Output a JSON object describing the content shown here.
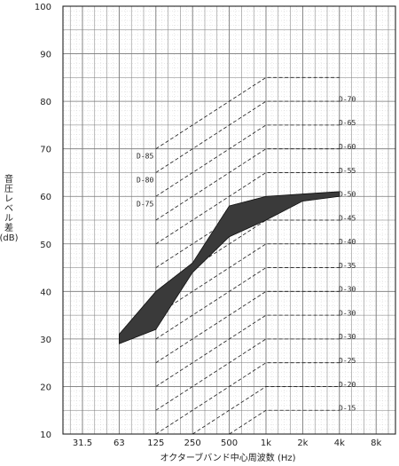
{
  "chart_data": {
    "type": "area",
    "title": "",
    "xlabel": "オクターブバンド中心周波数 (Hz)",
    "ylabel_lines": [
      "音",
      "圧",
      "レ",
      "ベ",
      "ル",
      "差",
      "(dB)"
    ],
    "x_ticks": [
      "31.5",
      "63",
      "125",
      "250",
      "500",
      "1k",
      "2k",
      "4k",
      "8k"
    ],
    "y_ticks": [
      10,
      20,
      30,
      40,
      50,
      60,
      70,
      80,
      90,
      100
    ],
    "ylim": [
      10,
      100
    ],
    "grid": true,
    "band": {
      "x": [
        "63",
        "125",
        "250",
        "500",
        "1k",
        "2k",
        "4k"
      ],
      "upper": [
        31,
        40,
        46,
        58,
        60,
        60.5,
        61
      ],
      "lower": [
        29,
        32,
        44,
        51.5,
        55,
        59,
        60
      ]
    },
    "reference_curves": [
      {
        "name": "D-85",
        "values": [
          null,
          70,
          75,
          80,
          85,
          85,
          85
        ]
      },
      {
        "name": "D-80",
        "values": [
          null,
          65,
          70,
          75,
          80,
          80,
          80
        ]
      },
      {
        "name": "D-75",
        "values": [
          null,
          60,
          65,
          70,
          75,
          75,
          75
        ]
      },
      {
        "name": "D-70",
        "values": [
          null,
          55,
          60,
          65,
          70,
          70,
          70
        ]
      },
      {
        "name": "D-65",
        "values": [
          null,
          50,
          55,
          60,
          65,
          65,
          65
        ]
      },
      {
        "name": "D-60",
        "values": [
          null,
          45,
          50,
          55,
          60,
          60,
          60
        ]
      },
      {
        "name": "D-55",
        "values": [
          null,
          40,
          45,
          50,
          55,
          55,
          55
        ]
      },
      {
        "name": "D-50",
        "values": [
          null,
          35,
          40,
          45,
          50,
          50,
          50
        ]
      },
      {
        "name": "D-45",
        "values": [
          null,
          30,
          35,
          40,
          45,
          45,
          45
        ]
      },
      {
        "name": "D-40",
        "values": [
          null,
          25,
          30,
          35,
          40,
          40,
          40
        ]
      },
      {
        "name": "D-35",
        "values": [
          null,
          20,
          25,
          30,
          35,
          35,
          35
        ]
      },
      {
        "name": "D-30",
        "values": [
          null,
          15,
          20,
          25,
          30,
          30,
          30
        ]
      },
      {
        "name": "D-25",
        "values": [
          null,
          10,
          15,
          20,
          25,
          25,
          25
        ]
      },
      {
        "name": "D-20",
        "values": [
          null,
          5,
          10,
          15,
          20,
          20,
          20
        ]
      },
      {
        "name": "D-15",
        "values": [
          null,
          0,
          5,
          10,
          15,
          15,
          15
        ]
      }
    ],
    "curve_labels": [
      {
        "text": "D-85",
        "y": 68.5,
        "side": "left"
      },
      {
        "text": "D-80",
        "y": 63.5,
        "side": "left"
      },
      {
        "text": "D-75",
        "y": 58.5,
        "side": "left"
      },
      {
        "text": "D-70",
        "y": 80.5,
        "side": "right"
      },
      {
        "text": "D-65",
        "y": 75.5,
        "side": "right"
      },
      {
        "text": "D-60",
        "y": 70.5,
        "side": "right"
      },
      {
        "text": "D-55",
        "y": 65.5,
        "side": "right"
      },
      {
        "text": "D-50",
        "y": 60.5,
        "side": "right"
      },
      {
        "text": "D-45",
        "y": 55.5,
        "side": "right"
      },
      {
        "text": "D-40",
        "y": 50.5,
        "side": "right"
      },
      {
        "text": "D-35",
        "y": 45.5,
        "side": "right"
      },
      {
        "text": "D-30",
        "y": 40.5,
        "side": "right"
      },
      {
        "text": "D-30",
        "y": 35.5,
        "side": "right"
      },
      {
        "text": "D-30",
        "y": 30.5,
        "side": "right"
      },
      {
        "text": "D-25",
        "y": 25.5,
        "side": "right"
      },
      {
        "text": "D-20",
        "y": 20.5,
        "side": "right"
      },
      {
        "text": "D-15",
        "y": 15.5,
        "side": "right"
      }
    ],
    "colors": {
      "band": "#3a3a3a",
      "grid": "#777777",
      "curve": "#1a1a1a"
    }
  }
}
